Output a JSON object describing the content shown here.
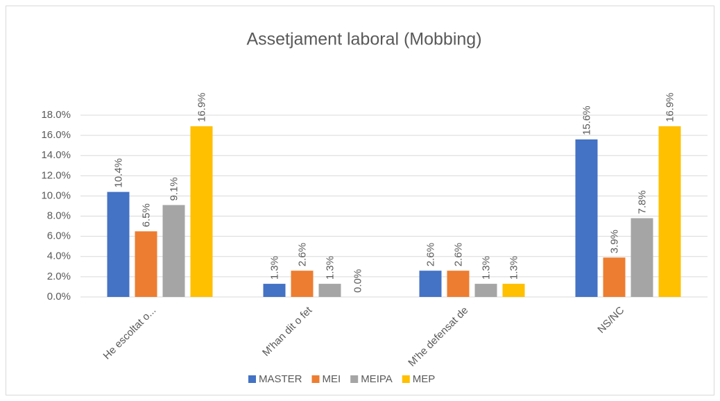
{
  "chart_data": {
    "type": "bar",
    "title": "Assetjament laboral (Mobbing)",
    "categories": [
      "He escoltat o...",
      "M'han dit o fet",
      "M'he defensat de",
      "NS/NC"
    ],
    "series": [
      {
        "name": "MASTER",
        "color": "#4472c4",
        "values": [
          10.4,
          1.3,
          2.6,
          15.6
        ],
        "value_labels": [
          "10.4%",
          "1.3%",
          "2.6%",
          "15.6%"
        ]
      },
      {
        "name": "MEI",
        "color": "#ed7d31",
        "values": [
          6.5,
          2.6,
          2.6,
          3.9
        ],
        "value_labels": [
          "6.5%",
          "2.6%",
          "2.6%",
          "3.9%"
        ]
      },
      {
        "name": "MEIPA",
        "color": "#a5a5a5",
        "values": [
          9.1,
          1.3,
          1.3,
          7.8
        ],
        "value_labels": [
          "9.1%",
          "1.3%",
          "1.3%",
          "7.8%"
        ]
      },
      {
        "name": "MEP",
        "color": "#ffc000",
        "values": [
          16.9,
          0.0,
          1.3,
          16.9
        ],
        "value_labels": [
          "16.9%",
          "0.0%",
          "1.3%",
          "16.9%"
        ]
      }
    ],
    "ylim": [
      0,
      18
    ],
    "yticks": [
      {
        "value": 0,
        "label": "0.0%"
      },
      {
        "value": 2,
        "label": "2.0%"
      },
      {
        "value": 4,
        "label": "4.0%"
      },
      {
        "value": 6,
        "label": "6.0%"
      },
      {
        "value": 8,
        "label": "8.0%"
      },
      {
        "value": 10,
        "label": "10.0%"
      },
      {
        "value": 12,
        "label": "12.0%"
      },
      {
        "value": 14,
        "label": "14.0%"
      },
      {
        "value": 16,
        "label": "16.0%"
      },
      {
        "value": 18,
        "label": "18.0%"
      }
    ],
    "grid": true,
    "legend": "bottom"
  }
}
